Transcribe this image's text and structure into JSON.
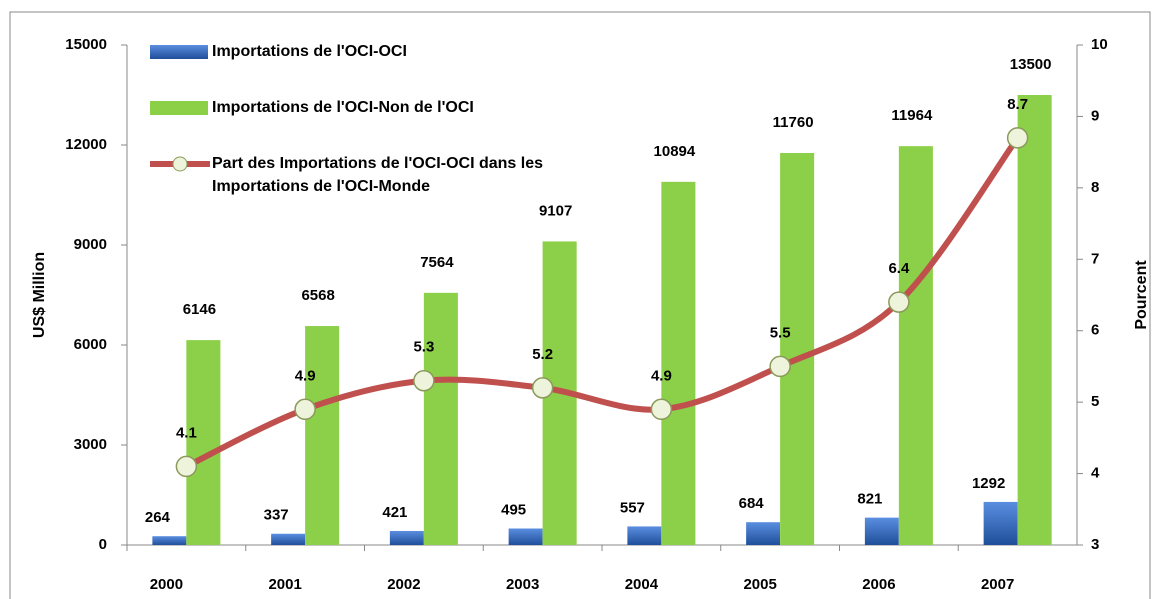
{
  "chart_data": {
    "type": "bar",
    "categories": [
      "2000",
      "2001",
      "2002",
      "2003",
      "2004",
      "2005",
      "2006",
      "2007"
    ],
    "series": [
      {
        "name": "Importations de l'OCI-OCI",
        "color": "#3a70c4",
        "values": [
          264,
          337,
          421,
          495,
          557,
          684,
          821,
          1292
        ]
      },
      {
        "name": "Importations de l'OCI-Non de l'OCI",
        "color": "#8cd048",
        "values": [
          6146,
          6568,
          7564,
          9107,
          10894,
          11760,
          11964,
          13500
        ]
      },
      {
        "name": "Part des Importations de l'OCI-OCI dans les Importations de l'OCI-Monde",
        "type": "line",
        "axis": "y2",
        "color": "#c0504d",
        "values": [
          4.1,
          4.9,
          5.3,
          5.2,
          4.9,
          5.5,
          6.4,
          8.7
        ]
      }
    ],
    "ylabel": "US$ Million",
    "y2label": "Pourcent",
    "ylim": [
      0,
      15000
    ],
    "yticks": [
      0,
      3000,
      6000,
      9000,
      12000,
      15000
    ],
    "y2lim": [
      3,
      10
    ],
    "y2ticks": [
      3,
      4,
      5,
      6,
      7,
      8,
      9,
      10
    ]
  }
}
